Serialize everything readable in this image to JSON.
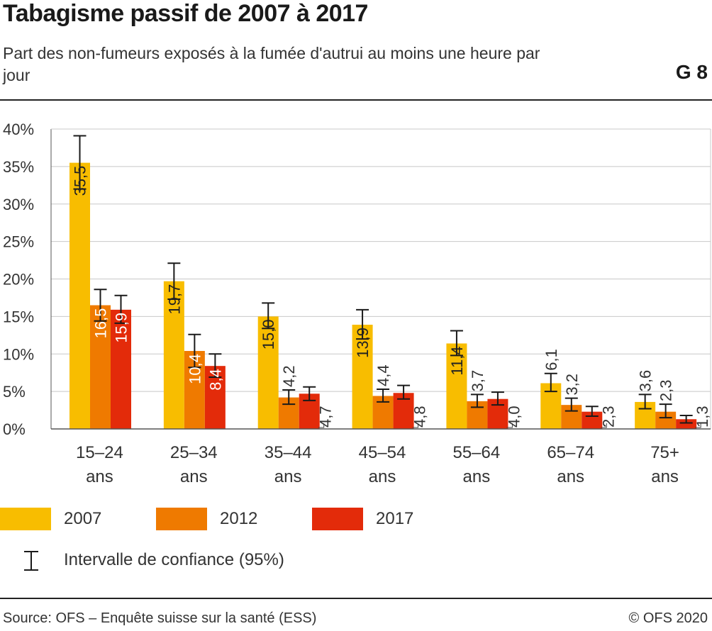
{
  "header": {
    "title": "Tabagisme passif de 2007 à 2017",
    "subtitle": "Part des non-fumeurs exposés à la fumée d'autrui au moins une heure par jour",
    "figure_id": "G 8"
  },
  "footer": {
    "source": "Source: OFS – Enquête suisse sur la santé (ESS)",
    "copyright": "© OFS 2020"
  },
  "legend": {
    "ci_label": "Intervalle de confiance (95%)"
  },
  "colors": {
    "2007": "#f8bd00",
    "2012": "#ef7a00",
    "2017": "#e32b0a",
    "grid": "#c8c8c8",
    "axis": "#555555",
    "errorbar": "#1a1a1a"
  },
  "chart_data": {
    "type": "bar",
    "categories": [
      [
        "15–24",
        "ans"
      ],
      [
        "25–34",
        "ans"
      ],
      [
        "35–44",
        "ans"
      ],
      [
        "45–54",
        "ans"
      ],
      [
        "55–64",
        "ans"
      ],
      [
        "65–74",
        "ans"
      ],
      [
        "75+",
        "ans"
      ]
    ],
    "series": [
      {
        "name": "2007",
        "values": [
          35.5,
          19.7,
          15.0,
          13.9,
          11.4,
          6.1,
          3.6
        ],
        "ci_low": [
          32.0,
          17.3,
          13.4,
          12.0,
          9.8,
          5.0,
          2.7
        ],
        "ci_high": [
          39.1,
          22.1,
          16.8,
          15.9,
          13.1,
          7.4,
          4.6
        ]
      },
      {
        "name": "2012",
        "values": [
          16.5,
          10.4,
          4.2,
          4.4,
          3.7,
          3.2,
          2.3
        ],
        "ci_low": [
          14.4,
          8.2,
          3.3,
          3.6,
          2.9,
          2.4,
          1.5
        ],
        "ci_high": [
          18.6,
          12.6,
          5.2,
          5.3,
          4.6,
          4.1,
          3.3
        ]
      },
      {
        "name": "2017",
        "values": [
          15.9,
          8.4,
          4.7,
          4.8,
          4.0,
          2.3,
          1.3
        ],
        "ci_low": [
          14.1,
          6.9,
          3.8,
          4.0,
          3.2,
          1.7,
          0.8
        ],
        "ci_high": [
          17.8,
          10.0,
          5.6,
          5.8,
          4.9,
          3.0,
          1.8
        ]
      }
    ],
    "value_labels": [
      [
        "35,5",
        "19,7",
        "15,0",
        "13,9",
        "11,4",
        "6,1",
        "3,6"
      ],
      [
        "16,5",
        "10,4",
        "4,2",
        "4,4",
        "3,7",
        "3,2",
        "2,3"
      ],
      [
        "15,9",
        "8,4",
        "4,7",
        "4,8",
        "4,0",
        "2,3",
        "1,3"
      ]
    ],
    "ylim": [
      0,
      40
    ],
    "yticks": [
      0,
      5,
      10,
      15,
      20,
      25,
      30,
      35,
      40
    ],
    "ytick_labels": [
      "0%",
      "5%",
      "10%",
      "15%",
      "20%",
      "25%",
      "30%",
      "35%",
      "40%"
    ],
    "grid": true,
    "legend_position": "bottom-left"
  }
}
